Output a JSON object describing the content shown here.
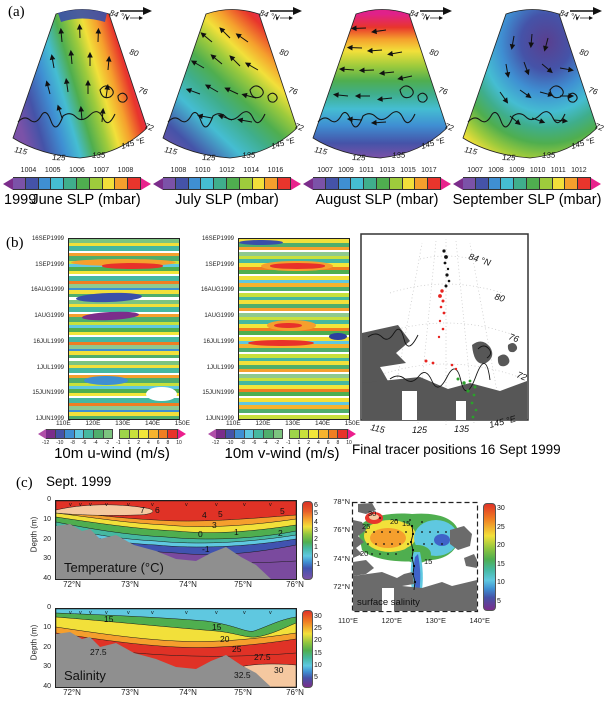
{
  "panel_a": {
    "panel_letter": "(a)",
    "year_label": "1999",
    "lat_ticks": [
      "84 °N",
      "80",
      "76",
      "72"
    ],
    "lon_ticks": [
      "115",
      "125",
      "135",
      "145 °E"
    ],
    "maps": [
      {
        "title": "June SLP (mbar)",
        "cbar_ticks": [
          "1004",
          "1005",
          "1006",
          "1007",
          "1008"
        ]
      },
      {
        "title": "July SLP (mbar)",
        "cbar_ticks": [
          "1008",
          "1010",
          "1012",
          "1014",
          "1016"
        ]
      },
      {
        "title": "August  SLP (mbar)",
        "cbar_ticks": [
          "1007",
          "1009",
          "1011",
          "1013",
          "1015",
          "1017"
        ]
      },
      {
        "title": "September  SLP (mbar)",
        "cbar_ticks": [
          "1007",
          "1008",
          "1009",
          "1010",
          "1011",
          "1012"
        ]
      }
    ]
  },
  "panel_b": {
    "panel_letter": "(b)",
    "time_ticks": [
      "16SEP1999",
      "1SEP1999",
      "16AUG1999",
      "1AUG1999",
      "16JUL1999",
      "1JUL1999",
      "15JUN1999",
      "1JUN1999"
    ],
    "lon_ticks": [
      "110E",
      "120E",
      "130E",
      "140E",
      "150E"
    ],
    "wind_cbar_ticks": [
      "-12",
      "-10",
      "-8",
      "-6",
      "-4",
      "-2",
      "-1",
      "1",
      "2",
      "4",
      "6",
      "8",
      "10"
    ],
    "uwind_label": "10m u-wind (m/s)",
    "vwind_label": "10m v-wind (m/s)",
    "tracer": {
      "lat_ticks": [
        "84 °N",
        "80",
        "76",
        "72"
      ],
      "lon_ticks": [
        "115",
        "125",
        "135",
        "145 °E"
      ],
      "caption": "Final tracer positions 16 Sept 1999"
    }
  },
  "panel_c": {
    "panel_letter": "(c)",
    "title": "Sept. 1999",
    "depth_axis_label": "Depth (m)",
    "depth_ticks": [
      "0",
      "10",
      "20",
      "30",
      "40"
    ],
    "lat_ticks": [
      "72°N",
      "73°N",
      "74°N",
      "75°N",
      "76°N"
    ],
    "station_marker": "v",
    "temperature": {
      "label": "Temperature (°C)",
      "cbar_ticks": [
        "6",
        "5",
        "4",
        "3",
        "2",
        "1",
        "0",
        "-1"
      ],
      "contour_labels": [
        "7",
        "6",
        "5",
        "4",
        "5",
        "3",
        "0",
        "1",
        "2",
        "-1"
      ]
    },
    "salinity": {
      "label": "Salinity",
      "cbar_ticks": [
        "30",
        "25",
        "20",
        "15",
        "10",
        "5"
      ],
      "contour_labels": [
        "15",
        "15",
        "20",
        "25",
        "27.5",
        "27.5",
        "30",
        "32.5"
      ]
    },
    "surface": {
      "label": "surface salinity",
      "cbar_ticks": [
        "30",
        "25",
        "20",
        "15",
        "10",
        "5"
      ],
      "lat_ticks": [
        "78°N",
        "76°N",
        "74°N",
        "72°N"
      ],
      "lon_ticks": [
        "110°E",
        "120°E",
        "130°E",
        "140°E"
      ],
      "contour_labels": [
        "30",
        "25",
        "20",
        "15",
        "20",
        "15"
      ]
    }
  },
  "chart_data": [
    {
      "id": "slp_june",
      "type": "heatmap",
      "title": "June SLP (mbar)",
      "year": 1999,
      "projection": "polar fan over Laptev Sea",
      "lat_ticks_degN": [
        84,
        80,
        76,
        72
      ],
      "lon_ticks_degE": [
        115,
        125,
        135,
        145
      ],
      "colorbar_ticks_mbar": [
        1004,
        1005,
        1006,
        1007,
        1008
      ],
      "overlay": "10 m wind vectors pointing northward",
      "pattern": "low SLP ~1004 mbar (purple) in southwest, high SLP ~1008+ mbar (red/magenta) in east"
    },
    {
      "id": "slp_july",
      "type": "heatmap",
      "title": "July SLP (mbar)",
      "year": 1999,
      "lat_ticks_degN": [
        84,
        80,
        76,
        72
      ],
      "lon_ticks_degE": [
        115,
        125,
        135,
        145
      ],
      "colorbar_ticks_mbar": [
        1008,
        1010,
        1012,
        1014,
        1016
      ],
      "overlay": "10 m wind vectors pointing northwestward",
      "pattern": "high SLP ~1016 mbar (red/magenta) in north near 84N, low ~1008 (purple) southwest"
    },
    {
      "id": "slp_august",
      "type": "heatmap",
      "title": "August SLP (mbar)",
      "year": 1999,
      "lat_ticks_degN": [
        84,
        80,
        76,
        72
      ],
      "lon_ticks_degE": [
        115,
        125,
        135,
        145
      ],
      "colorbar_ticks_mbar": [
        1007,
        1009,
        1011,
        1013,
        1015,
        1017
      ],
      "overlay": "10 m wind vectors pointing westward",
      "pattern": "zonal bands: high ~1017 (magenta) at 84N grading to low ~1007 (purple) at 72N"
    },
    {
      "id": "slp_september",
      "type": "heatmap",
      "title": "September SLP (mbar)",
      "year": 1999,
      "lat_ticks_degN": [
        84,
        80,
        76,
        72
      ],
      "lon_ticks_degE": [
        115,
        125,
        135,
        145
      ],
      "colorbar_ticks_mbar": [
        1007,
        1008,
        1009,
        1010,
        1011,
        1012
      ],
      "overlay": "10 m wind vectors, cyclonic/variable",
      "pattern": "closed low ~1007 (purple) centered north-east, high ~1012 (red/magenta) southwest corner"
    },
    {
      "id": "uwind_hovmoller",
      "type": "heatmap",
      "title": "10m u-wind (m/s)",
      "x_ticks": [
        "110E",
        "120E",
        "130E",
        "140E",
        "150E"
      ],
      "y_ticks": [
        "1JUN1999",
        "15JUN1999",
        "1JUL1999",
        "16JUL1999",
        "1AUG1999",
        "16AUG1999",
        "1SEP1999",
        "16SEP1999"
      ],
      "colorbar_ticks_ms": [
        -12,
        -10,
        -8,
        -6,
        -4,
        -2,
        -1,
        1,
        2,
        4,
        6,
        8,
        10
      ],
      "pattern": "banded westerly/easterly episodes; strong easterlies (blue/purple, -8 to -12) late July to 1 Aug; westerlies (orange) around 1 Sep"
    },
    {
      "id": "vwind_hovmoller",
      "type": "heatmap",
      "title": "10m v-wind (m/s)",
      "x_ticks": [
        "110E",
        "120E",
        "130E",
        "140E",
        "150E"
      ],
      "y_ticks": [
        "1JUN1999",
        "15JUN1999",
        "1JUL1999",
        "16JUL1999",
        "1AUG1999",
        "16AUG1999",
        "1SEP1999",
        "16SEP1999"
      ],
      "colorbar_ticks_ms": [
        -12,
        -10,
        -8,
        -6,
        -4,
        -2,
        -1,
        1,
        2,
        4,
        6,
        8,
        10
      ],
      "pattern": "alternating southerly (orange/red, up to +10) and northerly bands; strong southerlies mid-July and early September"
    },
    {
      "id": "tracer_map",
      "type": "scatter",
      "title": "Final tracer positions 16 Sept 1999",
      "lat_ticks_degN": [
        84,
        80,
        76,
        72
      ],
      "lon_ticks_degE": [
        115,
        125,
        135,
        145
      ],
      "series": [
        {
          "name": "black tracers",
          "color": "#111111",
          "location": "~127E, 81-84N (far north)"
        },
        {
          "name": "red tracers",
          "color": "#e8231f",
          "location": "~125-127E, 76-81N"
        },
        {
          "name": "green tracers",
          "color": "#2ca02c",
          "location": "~128-131E, 72-75N near Lena Delta"
        }
      ]
    },
    {
      "id": "temperature_section",
      "type": "contour_section",
      "title": "Temperature (°C)",
      "x_ticks": [
        "72°N",
        "73°N",
        "74°N",
        "75°N",
        "76°N"
      ],
      "y_label": "Depth (m)",
      "y_ticks_m": [
        0,
        10,
        20,
        30,
        40
      ],
      "colorbar_ticks_C": [
        6,
        5,
        4,
        3,
        2,
        1,
        0,
        -1
      ],
      "labeled_contours_C": [
        7,
        6,
        5,
        4,
        3,
        2,
        1,
        0,
        -1
      ],
      "pattern": "warm surface layer 5-7°C in upper ~10 m, sharp thermocline, sub-zero water (purple, < -1°C) below ~20 m; grey bathymetry"
    },
    {
      "id": "salinity_section",
      "type": "contour_section",
      "title": "Salinity",
      "x_ticks": [
        "72°N",
        "73°N",
        "74°N",
        "75°N",
        "76°N"
      ],
      "y_label": "Depth (m)",
      "y_ticks_m": [
        0,
        10,
        20,
        30,
        40
      ],
      "colorbar_ticks": [
        30,
        25,
        20,
        15,
        10,
        5
      ],
      "labeled_contours": [
        15,
        20,
        25,
        27.5,
        30,
        32.5
      ],
      "pattern": "fresh surface layer (10-15, blue/green) over salty bottom water (>30, red), halocline 10-20 m"
    },
    {
      "id": "surface_salinity_map",
      "type": "contour_map",
      "title": "surface salinity",
      "x_ticks": [
        "110°E",
        "120°E",
        "130°E",
        "140°E"
      ],
      "y_ticks": [
        "78°N",
        "76°N",
        "74°N",
        "72°N"
      ],
      "colorbar_ticks": [
        30,
        25,
        20,
        15,
        10,
        5
      ],
      "labeled_contours": [
        30,
        25,
        20,
        15
      ],
      "pattern": "salty (25-30, orange/red) west, fresh river plume (10-15, blue/cyan) near 130°E Lena outflow with station dots and ship track"
    }
  ]
}
